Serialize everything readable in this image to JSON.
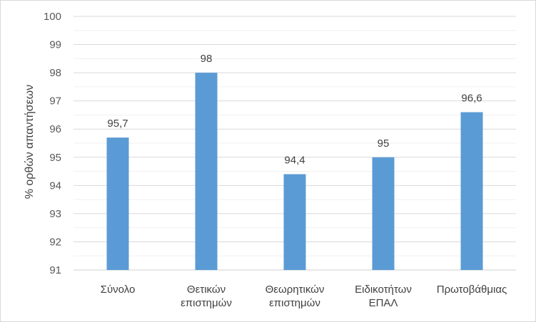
{
  "chart_data": {
    "type": "bar",
    "ylabel": "% ορθών απαντήσεων",
    "xlabel": "",
    "title": "",
    "ylim": [
      91,
      100
    ],
    "yticks": [
      "91",
      "92",
      "93",
      "94",
      "95",
      "96",
      "97",
      "98",
      "99",
      "100"
    ],
    "categories": [
      [
        "Σύνολο"
      ],
      [
        "Θετικών",
        "επιστημών"
      ],
      [
        "Θεωρητικών",
        "επιστημών"
      ],
      [
        "Ειδικοτήτων",
        "ΕΠΑΛ"
      ],
      [
        "Πρωτοβάθμιας"
      ]
    ],
    "values": [
      95.7,
      98,
      94.4,
      95,
      96.6
    ],
    "data_labels": [
      "95,7",
      "98",
      "94,4",
      "95",
      "96,6"
    ],
    "bar_color": "#5b9bd5",
    "grid": true,
    "legend": "none"
  }
}
